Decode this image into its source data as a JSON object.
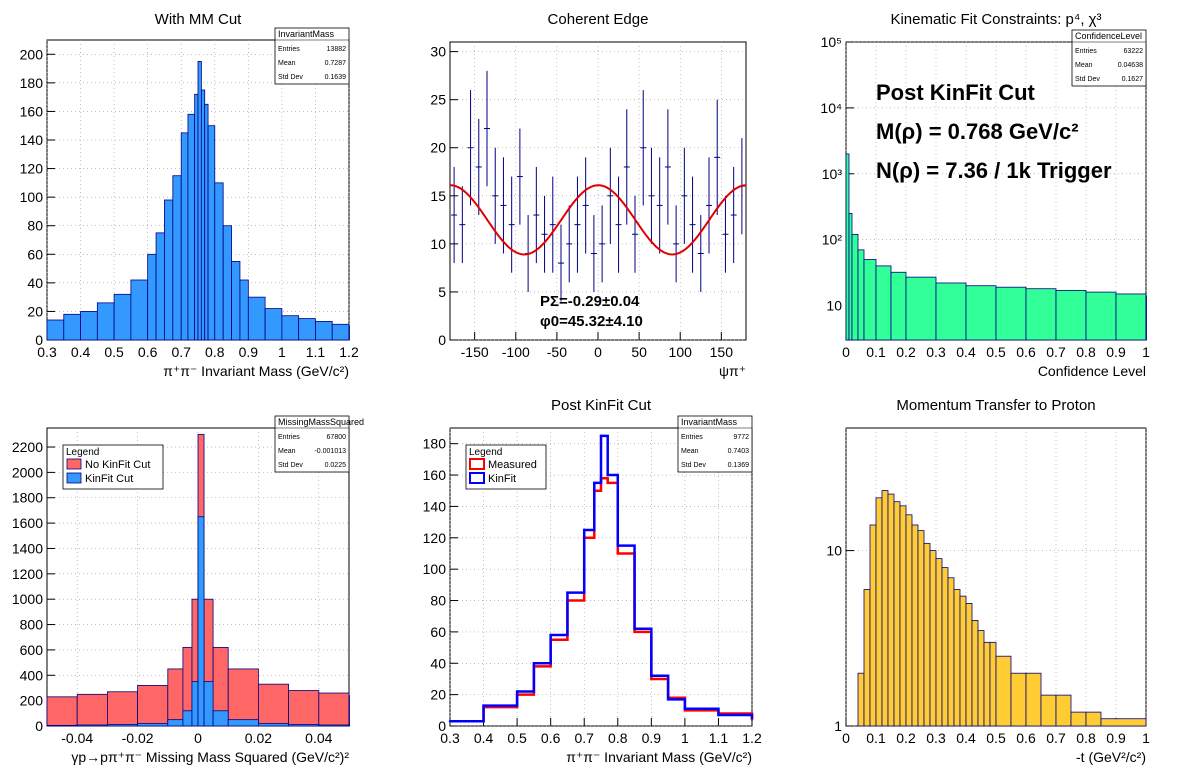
{
  "page": {
    "background": "#ffffff"
  },
  "chart_data": [
    {
      "type": "bar",
      "id": "p1",
      "title": "With MM Cut",
      "xlabel": "π⁺π⁻ Invariant Mass (GeV/c²)",
      "ylabel": "",
      "xlim": [
        0.3,
        1.2
      ],
      "ylim": [
        0,
        210
      ],
      "xticks": [
        "0.3",
        "0.4",
        "0.5",
        "0.6",
        "0.7",
        "0.8",
        "0.9",
        "1",
        "1.1",
        "1.2"
      ],
      "yticks": [
        "0",
        "20",
        "40",
        "60",
        "80",
        "100",
        "120",
        "140",
        "160",
        "180",
        "200"
      ],
      "grid": true,
      "fill_color": "#3399ff",
      "line_color": "#000080",
      "stats": {
        "name": "InvariantMass",
        "rows": [
          [
            "Entries",
            "13882"
          ],
          [
            "Mean",
            "0.7287"
          ],
          [
            "Std Dev",
            "0.1639"
          ]
        ]
      },
      "series": [
        {
          "x": [
            0.3,
            0.35,
            0.4,
            0.45,
            0.5,
            0.55,
            0.6,
            0.625,
            0.65,
            0.675,
            0.7,
            0.72,
            0.74,
            0.75,
            0.76,
            0.77,
            0.78,
            0.8,
            0.825,
            0.85,
            0.875,
            0.9,
            0.95,
            1.0,
            1.05,
            1.1,
            1.15,
            1.2
          ],
          "values": [
            14,
            18,
            20,
            26,
            32,
            42,
            60,
            75,
            98,
            115,
            145,
            158,
            172,
            195,
            175,
            165,
            150,
            110,
            80,
            55,
            42,
            30,
            22,
            17,
            15,
            13,
            11,
            10
          ]
        }
      ]
    },
    {
      "type": "scatter",
      "id": "p2",
      "title": "Coherent Edge",
      "xlabel": "ψπ⁺",
      "ylabel": "",
      "xlim": [
        -180,
        180
      ],
      "ylim": [
        0,
        31
      ],
      "xticks": [
        "-150",
        "-100",
        "-50",
        "0",
        "50",
        "100",
        "150"
      ],
      "yticks": [
        "0",
        "5",
        "10",
        "15",
        "20",
        "25",
        "30"
      ],
      "grid": true,
      "point_color": "#000080",
      "fit_color": "#e00000",
      "fit": {
        "offset": 12.5,
        "amplitude": 3.6,
        "phase_deg": 45.32
      },
      "annotations": [
        "PΣ=-0.29±0.04",
        "φ0=45.32±4.10"
      ],
      "series": [
        {
          "x": [
            -175,
            -165,
            -155,
            -145,
            -135,
            -125,
            -115,
            -105,
            -95,
            -85,
            -75,
            -65,
            -55,
            -45,
            -35,
            -25,
            -15,
            -5,
            5,
            15,
            25,
            35,
            45,
            55,
            65,
            75,
            85,
            95,
            105,
            115,
            125,
            135,
            145,
            155,
            165,
            175
          ],
          "values": [
            13,
            12,
            20,
            18,
            22,
            15,
            14,
            12,
            17,
            9,
            13,
            11,
            12,
            8,
            10,
            12,
            14,
            9,
            10,
            15,
            12,
            18,
            11,
            20,
            15,
            14,
            18,
            10,
            15,
            12,
            9,
            14,
            19,
            11,
            13,
            16
          ],
          "errors": [
            5,
            4,
            6,
            5,
            6,
            5,
            5,
            5,
            5,
            4,
            5,
            4,
            5,
            4,
            4,
            5,
            5,
            4,
            4,
            5,
            5,
            6,
            4,
            6,
            5,
            5,
            6,
            4,
            5,
            5,
            4,
            5,
            6,
            4,
            5,
            5
          ]
        }
      ]
    },
    {
      "type": "bar",
      "id": "p3",
      "title": "Kinematic Fit Constraints: p⁴, χ³",
      "xlabel": "Confidence Level",
      "ylabel": "",
      "xlim": [
        0,
        1
      ],
      "ylim": [
        3,
        100000
      ],
      "log_y": true,
      "xticks": [
        "0",
        "0.1",
        "0.2",
        "0.3",
        "0.4",
        "0.5",
        "0.6",
        "0.7",
        "0.8",
        "0.9",
        "1"
      ],
      "yticks": [
        "10",
        "10²",
        "10³",
        "10⁴",
        "10⁵"
      ],
      "grid": true,
      "fill_color": "#33ff99",
      "line_color": "#000080",
      "stats": {
        "name": "ConfidenceLevel",
        "rows": [
          [
            "Entries",
            "63222"
          ],
          [
            "Mean",
            "0.04638"
          ],
          [
            "Std Dev",
            "0.1627"
          ]
        ]
      },
      "annotations": [
        "Post KinFit Cut",
        "M(ρ) = 0.768 GeV/c²",
        "N(ρ) = 7.36 / 1k Trigger"
      ],
      "series": [
        {
          "x": [
            0.0,
            0.01,
            0.02,
            0.04,
            0.06,
            0.1,
            0.15,
            0.2,
            0.3,
            0.4,
            0.5,
            0.6,
            0.7,
            0.8,
            0.9,
            1.0
          ],
          "values": [
            2000,
            250,
            120,
            70,
            50,
            40,
            32,
            27,
            22,
            20,
            19,
            18,
            17,
            16,
            15,
            14
          ]
        }
      ]
    },
    {
      "type": "bar",
      "id": "p4",
      "title": "",
      "xlabel": "γp→pπ⁺π⁻ Missing Mass Squared (GeV/c²)²",
      "ylabel": "",
      "xlim": [
        -0.05,
        0.05
      ],
      "ylim": [
        0,
        2350
      ],
      "xticks": [
        "-0.04",
        "-0.02",
        "0",
        "0.02",
        "0.04"
      ],
      "yticks": [
        "0",
        "200",
        "400",
        "600",
        "800",
        "1000",
        "1200",
        "1400",
        "1600",
        "1800",
        "2000",
        "2200"
      ],
      "grid": true,
      "stats": {
        "name": "MissingMassSquared",
        "rows": [
          [
            "Entries",
            "67800"
          ],
          [
            "Mean",
            "-0.001013"
          ],
          [
            "Std Dev",
            "0.0225"
          ]
        ]
      },
      "legend": {
        "title": "Legend",
        "position": "top-left"
      },
      "series": [
        {
          "name": "No KinFit Cut",
          "color": "#ff6666",
          "x": [
            -0.05,
            -0.04,
            -0.03,
            -0.02,
            -0.01,
            -0.005,
            -0.002,
            0.0,
            0.002,
            0.005,
            0.01,
            0.02,
            0.03,
            0.04,
            0.05
          ],
          "values": [
            230,
            250,
            270,
            320,
            450,
            620,
            1000,
            2300,
            1000,
            620,
            450,
            330,
            280,
            260,
            240
          ]
        },
        {
          "name": "KinFit Cut",
          "color": "#3399ff",
          "x": [
            -0.05,
            -0.04,
            -0.03,
            -0.02,
            -0.01,
            -0.005,
            -0.002,
            0.0,
            0.002,
            0.005,
            0.01,
            0.02,
            0.03,
            0.04,
            0.05
          ],
          "values": [
            5,
            8,
            12,
            20,
            50,
            120,
            350,
            1650,
            350,
            120,
            50,
            20,
            12,
            8,
            5
          ]
        }
      ]
    },
    {
      "type": "line",
      "id": "p5",
      "title": "Post KinFit Cut",
      "xlabel": "π⁺π⁻ Invariant Mass (GeV/c²)",
      "ylabel": "",
      "xlim": [
        0.3,
        1.2
      ],
      "ylim": [
        0,
        190
      ],
      "xticks": [
        "0.3",
        "0.4",
        "0.5",
        "0.6",
        "0.7",
        "0.8",
        "0.9",
        "1",
        "1.1",
        "1.2"
      ],
      "yticks": [
        "0",
        "20",
        "40",
        "60",
        "80",
        "100",
        "120",
        "140",
        "160",
        "180"
      ],
      "grid": true,
      "stats": {
        "name": "InvariantMass",
        "rows": [
          [
            "Entries",
            "9772"
          ],
          [
            "Mean",
            "0.7403"
          ],
          [
            "Std Dev",
            "0.1369"
          ]
        ]
      },
      "legend": {
        "title": "Legend",
        "position": "top-left"
      },
      "series": [
        {
          "name": "Measured",
          "color": "#ff0000",
          "x": [
            0.3,
            0.4,
            0.5,
            0.55,
            0.6,
            0.65,
            0.7,
            0.73,
            0.75,
            0.77,
            0.8,
            0.85,
            0.9,
            0.95,
            1.0,
            1.1,
            1.2
          ],
          "values": [
            3,
            12,
            20,
            38,
            55,
            80,
            120,
            150,
            158,
            155,
            110,
            60,
            30,
            18,
            10,
            8,
            4
          ]
        },
        {
          "name": "KinFit",
          "color": "#0000ff",
          "x": [
            0.3,
            0.4,
            0.5,
            0.55,
            0.6,
            0.65,
            0.7,
            0.73,
            0.75,
            0.77,
            0.8,
            0.85,
            0.9,
            0.95,
            1.0,
            1.1,
            1.2
          ],
          "values": [
            3,
            13,
            22,
            40,
            58,
            85,
            125,
            155,
            185,
            160,
            115,
            62,
            32,
            17,
            11,
            7,
            5
          ]
        }
      ]
    },
    {
      "type": "bar",
      "id": "p6",
      "title": "Momentum Transfer to Proton",
      "xlabel": "-t (GeV²/c²)",
      "ylabel": "",
      "xlim": [
        0,
        1
      ],
      "ylim": [
        1,
        50
      ],
      "log_y": true,
      "xticks": [
        "0",
        "0.1",
        "0.2",
        "0.3",
        "0.4",
        "0.5",
        "0.6",
        "0.7",
        "0.8",
        "0.9",
        "1"
      ],
      "yticks": [
        "1",
        "10"
      ],
      "grid": true,
      "fill_color": "#ffcc33",
      "line_color": "#000080",
      "series": [
        {
          "x": [
            0.04,
            0.06,
            0.08,
            0.1,
            0.12,
            0.14,
            0.16,
            0.18,
            0.2,
            0.22,
            0.24,
            0.26,
            0.28,
            0.3,
            0.32,
            0.34,
            0.36,
            0.38,
            0.4,
            0.42,
            0.44,
            0.46,
            0.48,
            0.5,
            0.55,
            0.6,
            0.65,
            0.7,
            0.75,
            0.8,
            0.85
          ],
          "values": [
            2,
            6,
            14,
            20,
            22,
            21,
            19,
            18,
            16,
            14,
            13,
            11,
            10,
            9,
            8,
            7,
            6,
            5.5,
            5,
            4,
            3.5,
            3,
            3,
            2.5,
            2,
            2,
            1.5,
            1.5,
            1.2,
            1.2,
            1.1
          ]
        }
      ]
    }
  ]
}
